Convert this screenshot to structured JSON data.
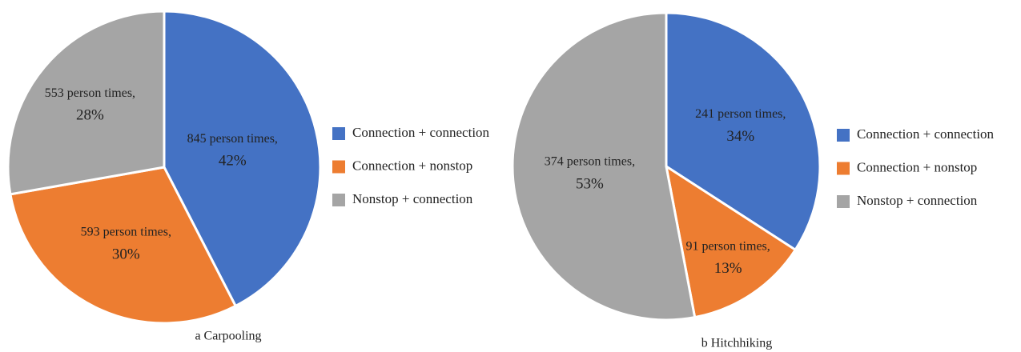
{
  "chart_data": [
    {
      "type": "pie",
      "caption": "a Carpooling",
      "categories": [
        "Connection + connection",
        "Connection + nonstop",
        "Nonstop + connection"
      ],
      "values": [
        845,
        593,
        553
      ],
      "value_labels": [
        "845 person times,",
        "593 person times,",
        "553 person times,"
      ],
      "percent_labels": [
        "42%",
        "30%",
        "28%"
      ],
      "colors": [
        "#4472c4",
        "#ed7d31",
        "#a5a5a5"
      ]
    },
    {
      "type": "pie",
      "caption": "b Hitchhiking",
      "categories": [
        "Connection + connection",
        "Connection + nonstop",
        "Nonstop + connection"
      ],
      "values": [
        241,
        91,
        374
      ],
      "value_labels": [
        "241 person times,",
        "91 person times,",
        "374 person times,"
      ],
      "percent_labels": [
        "34%",
        "13%",
        "53%"
      ],
      "colors": [
        "#4472c4",
        "#ed7d31",
        "#a5a5a5"
      ]
    }
  ]
}
